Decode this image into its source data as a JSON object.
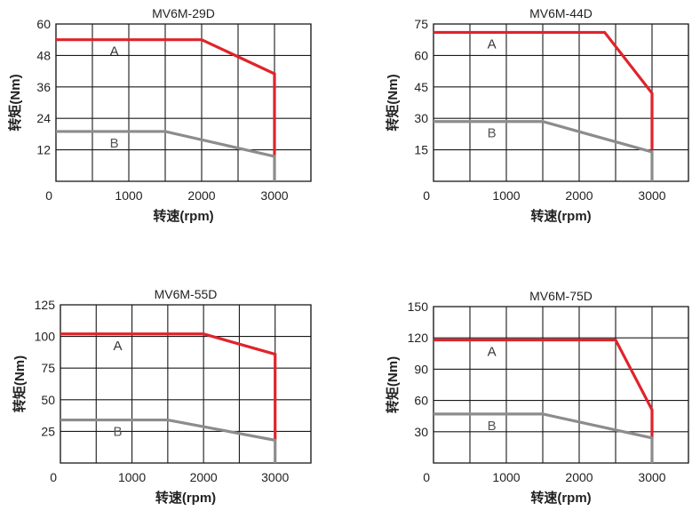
{
  "chart_data": [
    {
      "type": "line",
      "title": "MV6M-29D",
      "xlabel": "转速(rpm)",
      "ylabel": "转矩(Nm)",
      "xlim": [
        0,
        3500
      ],
      "ylim": [
        0,
        60
      ],
      "x_ticks": [
        0,
        1000,
        2000,
        3000
      ],
      "x_tick_labels": [
        "0",
        "1000",
        "2000",
        "3000"
      ],
      "y_ticks": [
        0,
        12,
        24,
        36,
        48,
        60
      ],
      "y_tick_labels": [
        "",
        "12",
        "24",
        "36",
        "48",
        "60"
      ],
      "grid": true,
      "series": [
        {
          "name": "A",
          "color": "#e0232a",
          "x": [
            0,
            2000,
            3000,
            3000
          ],
          "y": [
            54,
            54,
            41,
            10
          ]
        },
        {
          "name": "B",
          "color": "#8c8c8c",
          "x": [
            0,
            1500,
            3000,
            3000
          ],
          "y": [
            19,
            19,
            9.5,
            0
          ]
        }
      ]
    },
    {
      "type": "line",
      "title": "MV6M-44D",
      "xlabel": "转速(rpm)",
      "ylabel": "转矩(Nm)",
      "xlim": [
        0,
        3500
      ],
      "ylim": [
        0,
        75
      ],
      "x_ticks": [
        0,
        1000,
        2000,
        3000
      ],
      "x_tick_labels": [
        "0",
        "1000",
        "2000",
        "3000"
      ],
      "y_ticks": [
        0,
        15,
        30,
        45,
        60,
        75
      ],
      "y_tick_labels": [
        "",
        "15",
        "30",
        "45",
        "60",
        "75"
      ],
      "grid": true,
      "series": [
        {
          "name": "A",
          "color": "#e0232a",
          "x": [
            0,
            2350,
            3000,
            3000
          ],
          "y": [
            71,
            71,
            42,
            15
          ]
        },
        {
          "name": "B",
          "color": "#8c8c8c",
          "x": [
            0,
            1500,
            3000,
            3000
          ],
          "y": [
            28.5,
            28.5,
            14,
            0
          ]
        }
      ]
    },
    {
      "type": "line",
      "title": "MV6M-55D",
      "xlabel": "转速(rpm)",
      "ylabel": "转矩(Nm)",
      "xlim": [
        0,
        3500
      ],
      "ylim": [
        0,
        125
      ],
      "x_ticks": [
        0,
        1000,
        2000,
        3000
      ],
      "x_tick_labels": [
        "0",
        "1000",
        "2000",
        "3000"
      ],
      "y_ticks": [
        0,
        25,
        50,
        75,
        100,
        125
      ],
      "y_tick_labels": [
        "",
        "25",
        "50",
        "75",
        "100",
        "125"
      ],
      "grid": true,
      "series": [
        {
          "name": "A",
          "color": "#e0232a",
          "x": [
            0,
            2000,
            3000,
            3000
          ],
          "y": [
            102,
            102,
            86,
            18
          ]
        },
        {
          "name": "B",
          "color": "#8c8c8c",
          "x": [
            0,
            1500,
            3000,
            3000
          ],
          "y": [
            34,
            34,
            18,
            0
          ]
        }
      ]
    },
    {
      "type": "line",
      "title": "MV6M-75D",
      "xlabel": "转速(rpm)",
      "ylabel": "转矩(Nm)",
      "xlim": [
        0,
        3500
      ],
      "ylim": [
        0,
        150
      ],
      "x_ticks": [
        0,
        1000,
        2000,
        3000
      ],
      "x_tick_labels": [
        "0",
        "1000",
        "2000",
        "3000"
      ],
      "y_ticks": [
        0,
        30,
        60,
        90,
        120,
        150
      ],
      "y_tick_labels": [
        "",
        "30",
        "60",
        "90",
        "120",
        "150"
      ],
      "grid": true,
      "series": [
        {
          "name": "A",
          "color": "#e0232a",
          "x": [
            0,
            2500,
            3000,
            3000
          ],
          "y": [
            118,
            118,
            51,
            24
          ]
        },
        {
          "name": "B",
          "color": "#8c8c8c",
          "x": [
            0,
            1500,
            3000,
            3000
          ],
          "y": [
            47,
            47,
            24,
            0
          ]
        }
      ]
    }
  ]
}
